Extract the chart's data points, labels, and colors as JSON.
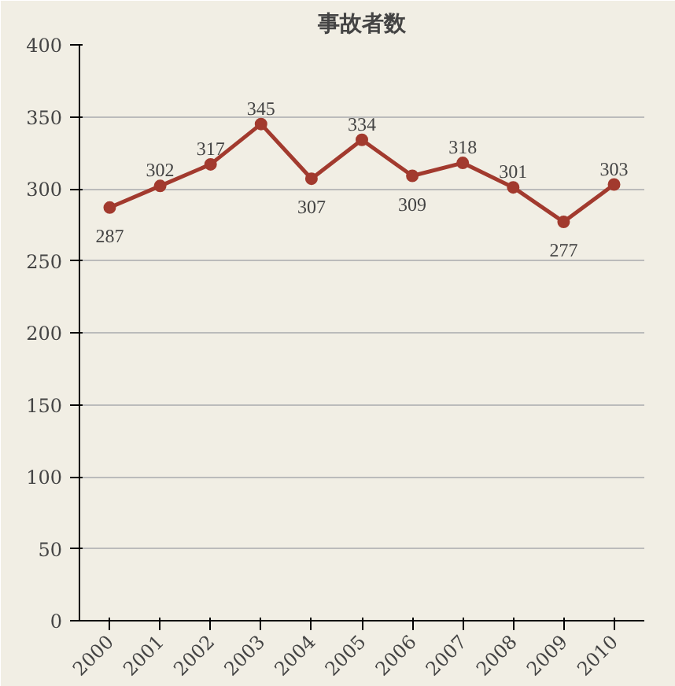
{
  "chart_data": {
    "type": "line",
    "title": "事故者数",
    "categories": [
      "2000",
      "2001",
      "2002",
      "2003",
      "2004",
      "2005",
      "2006",
      "2007",
      "2008",
      "2009",
      "2010"
    ],
    "series": [
      {
        "color": "#a23a2e",
        "values": [
          287,
          302,
          317,
          345,
          307,
          334,
          309,
          318,
          301,
          277,
          303
        ]
      }
    ],
    "ylim": [
      0,
      400
    ],
    "yticks": [
      0,
      50,
      100,
      150,
      200,
      250,
      300,
      350,
      400
    ],
    "grid": "y",
    "marker": "circle",
    "line_style": "solid",
    "data_labels": true
  }
}
